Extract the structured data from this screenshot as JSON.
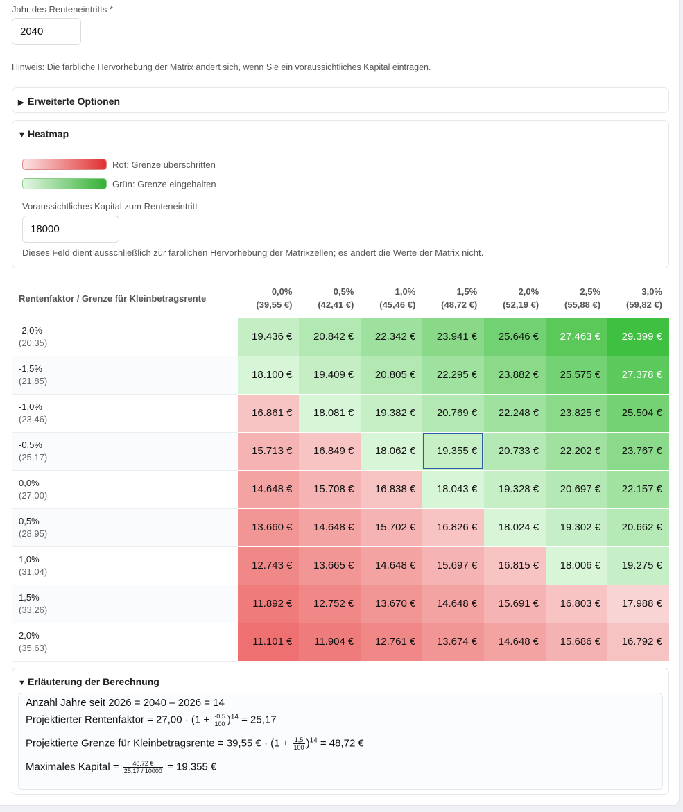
{
  "retirement_year": {
    "label": "Jahr des Renteneintritts *",
    "value": "2040"
  },
  "hint": "Hinweis: Die farbliche Hervorhebung der Matrix ändert sich, wenn Sie ein voraussichtliches Kapital eintragen.",
  "advanced": {
    "title": "Erweiterte Optionen"
  },
  "heatmap": {
    "title": "Heatmap",
    "legend_red": "Rot: Grenze überschritten",
    "legend_green": "Grün: Grenze eingehalten",
    "capital_label": "Voraussichtliches Kapital zum Renteneintritt",
    "capital_value": "18000",
    "capital_note": "Dieses Feld dient ausschließlich zur farblichen Hervorhebung der Matrixzellen; es ändert die Werte der Matrix nicht.",
    "colors": {
      "red": "#e03030",
      "green": "#34b034"
    }
  },
  "matrix": {
    "corner": "Rentenfaktor / Grenze für Kleinbetragsrente",
    "columns": [
      {
        "rate": "0,0%",
        "limit": "(39,55 €)"
      },
      {
        "rate": "0,5%",
        "limit": "(42,41 €)"
      },
      {
        "rate": "1,0%",
        "limit": "(45,46 €)"
      },
      {
        "rate": "1,5%",
        "limit": "(48,72 €)"
      },
      {
        "rate": "2,0%",
        "limit": "(52,19 €)"
      },
      {
        "rate": "2,5%",
        "limit": "(55,88 €)"
      },
      {
        "rate": "3,0%",
        "limit": "(59,82 €)"
      }
    ],
    "rows": [
      {
        "rate": "-2,0%",
        "factor": "(20,35)",
        "cells": [
          "19.436 €",
          "20.842 €",
          "22.342 €",
          "23.941 €",
          "25.646 €",
          "27.463 €",
          "29.399 €"
        ],
        "nums": [
          19436,
          20842,
          22342,
          23941,
          25646,
          27463,
          29399
        ]
      },
      {
        "rate": "-1,5%",
        "factor": "(21,85)",
        "cells": [
          "18.100 €",
          "19.409 €",
          "20.805 €",
          "22.295 €",
          "23.882 €",
          "25.575 €",
          "27.378 €"
        ],
        "nums": [
          18100,
          19409,
          20805,
          22295,
          23882,
          25575,
          27378
        ]
      },
      {
        "rate": "-1,0%",
        "factor": "(23,46)",
        "cells": [
          "16.861 €",
          "18.081 €",
          "19.382 €",
          "20.769 €",
          "22.248 €",
          "23.825 €",
          "25.504 €"
        ],
        "nums": [
          16861,
          18081,
          19382,
          20769,
          22248,
          23825,
          25504
        ]
      },
      {
        "rate": "-0,5%",
        "factor": "(25,17)",
        "cells": [
          "15.713 €",
          "16.849 €",
          "18.062 €",
          "19.355 €",
          "20.733 €",
          "22.202 €",
          "23.767 €"
        ],
        "nums": [
          15713,
          16849,
          18062,
          19355,
          20733,
          22202,
          23767
        ]
      },
      {
        "rate": "0,0%",
        "factor": "(27,00)",
        "cells": [
          "14.648 €",
          "15.708 €",
          "16.838 €",
          "18.043 €",
          "19.328 €",
          "20.697 €",
          "22.157 €"
        ],
        "nums": [
          14648,
          15708,
          16838,
          18043,
          19328,
          20697,
          22157
        ]
      },
      {
        "rate": "0,5%",
        "factor": "(28,95)",
        "cells": [
          "13.660 €",
          "14.648 €",
          "15.702 €",
          "16.826 €",
          "18.024 €",
          "19.302 €",
          "20.662 €"
        ],
        "nums": [
          13660,
          14648,
          15702,
          16826,
          18024,
          19302,
          20662
        ]
      },
      {
        "rate": "1,0%",
        "factor": "(31,04)",
        "cells": [
          "12.743 €",
          "13.665 €",
          "14.648 €",
          "15.697 €",
          "16.815 €",
          "18.006 €",
          "19.275 €"
        ],
        "nums": [
          12743,
          13665,
          14648,
          15697,
          16815,
          18006,
          19275
        ]
      },
      {
        "rate": "1,5%",
        "factor": "(33,26)",
        "cells": [
          "11.892 €",
          "12.752 €",
          "13.670 €",
          "14.648 €",
          "15.691 €",
          "16.803 €",
          "17.988 €"
        ],
        "nums": [
          11892,
          12752,
          13670,
          14648,
          15691,
          16803,
          17988
        ]
      },
      {
        "rate": "2,0%",
        "factor": "(35,63)",
        "cells": [
          "11.101 €",
          "11.904 €",
          "12.761 €",
          "13.674 €",
          "14.648 €",
          "15.686 €",
          "16.792 €"
        ],
        "nums": [
          11101,
          11904,
          12761,
          13674,
          14648,
          15686,
          16792
        ]
      }
    ],
    "selected": {
      "row": 3,
      "col": 3
    }
  },
  "explanation": {
    "title": "Erläuterung der Berechnung",
    "line1": "Anzahl Jahre seit 2026 = 2040 – 2026 = 14",
    "line2_a": "Projektierter Rentenfaktor = 27,00 · (1 +",
    "line2_num": "-0,5",
    "line2_den": "100",
    "line2_exp": "14",
    "line2_b": ")",
    "line2_c": " = 25,17",
    "line3_a": "Projektierte Grenze für Kleinbetragsrente = 39,55 € · (1 +",
    "line3_num": "1,5",
    "line3_den": "100",
    "line3_exp": "14",
    "line3_b": ")",
    "line3_c": " = 48,72 €",
    "line4_a": "Maximales Kapital =",
    "line4_num": "48,72 €",
    "line4_den": "25,17 / 10000",
    "line4_c": "= 19.355 €"
  }
}
